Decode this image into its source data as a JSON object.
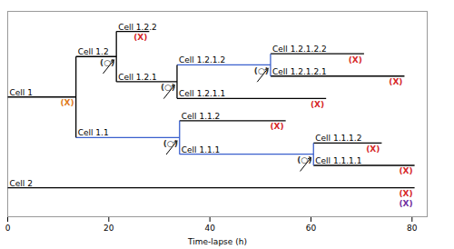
{
  "chart_data": {
    "type": "lineage",
    "x_label": "Time-lapse (h)",
    "xlim": [
      0,
      83
    ],
    "xticks": [
      0,
      20,
      40,
      60,
      80
    ],
    "cells": [
      {
        "name": "Cell 1",
        "start": 0,
        "end": 13.5,
        "color": "#000000",
        "marks": [
          {
            "text": "(X)",
            "color": "#e07b20"
          }
        ],
        "children": [
          {
            "name": "Cell 1.2",
            "start": 13.5,
            "end": 21.5,
            "color": "#000000",
            "marks": [
              {
                "text": "(○)",
                "color": "#333333"
              }
            ],
            "children": [
              {
                "name": "Cell 1.2.2",
                "start": 21.5,
                "end": 28,
                "color": "#000000",
                "marks": [
                  {
                    "text": "(X)",
                    "color": "#d62728"
                  }
                ],
                "children": []
              },
              {
                "name": "Cell 1.2.1",
                "start": 21.5,
                "end": 33.5,
                "color": "#000000",
                "marks": [
                  {
                    "text": "(○)",
                    "color": "#333333"
                  }
                ],
                "children": [
                  {
                    "name": "Cell 1.2.1.2",
                    "start": 33.5,
                    "end": 52,
                    "color": "#3a5fcd",
                    "marks": [
                      {
                        "text": "(○)",
                        "color": "#333333"
                      }
                    ],
                    "children": [
                      {
                        "name": "Cell 1.2.1.2.2",
                        "start": 52,
                        "end": 70.5,
                        "color": "#000000",
                        "marks": [
                          {
                            "text": "(X)",
                            "color": "#d62728"
                          }
                        ],
                        "children": []
                      },
                      {
                        "name": "Cell 1.2.1.2.1",
                        "start": 52,
                        "end": 78.5,
                        "color": "#000000",
                        "marks": [
                          {
                            "text": "(X)",
                            "color": "#d62728"
                          }
                        ],
                        "children": []
                      }
                    ]
                  },
                  {
                    "name": "Cell 1.2.1.1",
                    "start": 33.5,
                    "end": 63,
                    "color": "#000000",
                    "marks": [
                      {
                        "text": "(X)",
                        "color": "#d62728"
                      }
                    ],
                    "children": []
                  }
                ]
              }
            ]
          },
          {
            "name": "Cell 1.1",
            "start": 13.5,
            "end": 34,
            "color": "#3a5fcd",
            "marks": [
              {
                "text": "(○)",
                "color": "#333333"
              }
            ],
            "children": [
              {
                "name": "Cell 1.1.2",
                "start": 34,
                "end": 55,
                "color": "#000000",
                "marks": [
                  {
                    "text": "(X)",
                    "color": "#d62728"
                  }
                ],
                "children": []
              },
              {
                "name": "Cell 1.1.1",
                "start": 34,
                "end": 60.5,
                "color": "#3a5fcd",
                "marks": [
                  {
                    "text": "(○)",
                    "color": "#333333"
                  }
                ],
                "children": [
                  {
                    "name": "Cell 1.1.1.2",
                    "start": 60.5,
                    "end": 74,
                    "color": "#000000",
                    "marks": [
                      {
                        "text": "(X)",
                        "color": "#d62728"
                      }
                    ],
                    "children": []
                  },
                  {
                    "name": "Cell 1.1.1.1",
                    "start": 60.5,
                    "end": 80.5,
                    "color": "#000000",
                    "marks": [
                      {
                        "text": "(X)",
                        "color": "#d62728"
                      }
                    ],
                    "children": []
                  }
                ]
              }
            ]
          }
        ]
      },
      {
        "name": "Cell 2",
        "start": 0,
        "end": 80.5,
        "color": "#000000",
        "marks": [
          {
            "text": "(X)",
            "color": "#d62728"
          },
          {
            "text": "(X)",
            "color": "#7030a0"
          }
        ],
        "children": []
      }
    ]
  }
}
